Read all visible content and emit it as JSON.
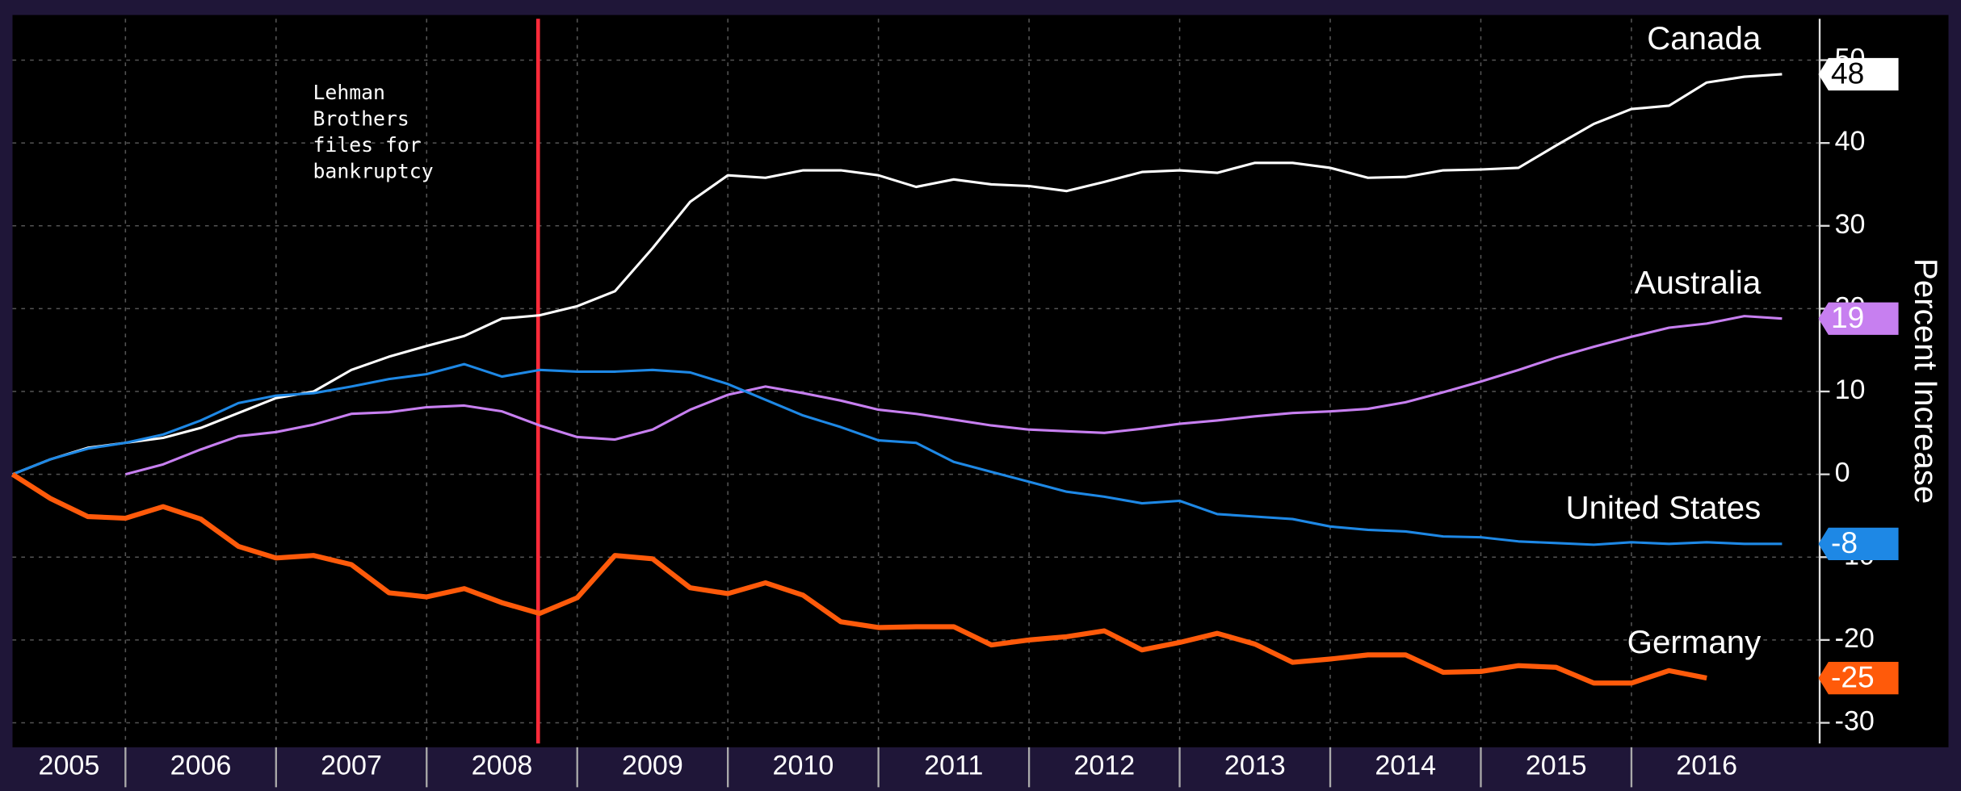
{
  "chart_data": {
    "type": "line",
    "y_axis_label": "Percent Increase",
    "annotation": {
      "x": 2008.74,
      "lines": [
        "Lehman",
        "Brothers",
        "files for",
        "bankruptcy"
      ],
      "color": "#ff2a3a"
    },
    "x": [
      2005.25,
      2005.5,
      2005.75,
      2006,
      2006.25,
      2006.5,
      2006.75,
      2007,
      2007.25,
      2007.5,
      2007.75,
      2008,
      2008.25,
      2008.5,
      2008.75,
      2009,
      2009.25,
      2009.5,
      2009.75,
      2010,
      2010.25,
      2010.5,
      2010.75,
      2011,
      2011.25,
      2011.5,
      2011.75,
      2012,
      2012.25,
      2012.5,
      2012.75,
      2013,
      2013.25,
      2013.5,
      2013.75,
      2014,
      2014.25,
      2014.5,
      2014.75,
      2015,
      2015.25,
      2015.5,
      2015.75,
      2016,
      2016.25,
      2016.5,
      2016.75,
      2017
    ],
    "xlim": [
      2005.25,
      2017.25
    ],
    "xticks": [
      2005,
      2006,
      2007,
      2008,
      2009,
      2010,
      2011,
      2012,
      2013,
      2014,
      2015,
      2016
    ],
    "ylim": [
      -32.5,
      55
    ],
    "yticks": [
      -30,
      -20,
      -10,
      0,
      10,
      20,
      30,
      40,
      50
    ],
    "grid": true,
    "series": [
      {
        "name": "Canada",
        "color": "#ffffff",
        "width": 2,
        "values": [
          0,
          1.8,
          3.2,
          3.8,
          4.4,
          5.6,
          7.4,
          9.2,
          10,
          12.6,
          14.2,
          15.5,
          16.7,
          18.8,
          19.2,
          20.3,
          22.1,
          27.3,
          32.9,
          36.1,
          35.8,
          36.7,
          36.7,
          36.1,
          34.7,
          35.6,
          35,
          34.8,
          34.2,
          35.3,
          36.5,
          36.7,
          36.4,
          37.6,
          37.6,
          37,
          35.8,
          35.9,
          36.7,
          36.8,
          37,
          39.7,
          42.3,
          44.1,
          44.5,
          47.3,
          48,
          48.3
        ],
        "value_labels": [
          null,
          null,
          null,
          null,
          null,
          null,
          null,
          null,
          null,
          null,
          null,
          null,
          null,
          null,
          null,
          null,
          null,
          null,
          null,
          null,
          null,
          null,
          null,
          null,
          null,
          null,
          null,
          null,
          null,
          null,
          null,
          null,
          null,
          null,
          null,
          null,
          null,
          null,
          null,
          null,
          null,
          null,
          null,
          null,
          null,
          null,
          null,
          "48"
        ]
      },
      {
        "name": "Australia",
        "color": "#c77ff0",
        "width": 2,
        "values": [
          null,
          null,
          null,
          0,
          1.2,
          3,
          4.6,
          5.1,
          6,
          7.3,
          7.5,
          8.1,
          8.3,
          7.6,
          5.9,
          4.5,
          4.2,
          5.4,
          7.8,
          9.6,
          10.6,
          9.8,
          8.9,
          7.8,
          7.3,
          6.6,
          5.9,
          5.4,
          5.2,
          5,
          5.5,
          6.1,
          6.5,
          7,
          7.4,
          7.6,
          7.9,
          8.7,
          9.9,
          11.2,
          12.6,
          14.1,
          15.4,
          16.6,
          17.7,
          18.2,
          19.1,
          18.8
        ],
        "value_labels": [
          null,
          null,
          null,
          null,
          null,
          null,
          null,
          null,
          null,
          null,
          null,
          null,
          null,
          null,
          null,
          null,
          null,
          null,
          null,
          null,
          null,
          null,
          null,
          null,
          null,
          null,
          null,
          null,
          null,
          null,
          null,
          null,
          null,
          null,
          null,
          null,
          null,
          null,
          null,
          null,
          null,
          null,
          null,
          null,
          null,
          null,
          null,
          "19"
        ]
      },
      {
        "name": "United States",
        "color": "#1e88e5",
        "width": 2,
        "values": [
          0,
          1.8,
          3.1,
          3.8,
          4.8,
          6.5,
          8.6,
          9.5,
          9.8,
          10.6,
          11.5,
          12.1,
          13.3,
          11.8,
          12.6,
          12.4,
          12.4,
          12.6,
          12.3,
          10.9,
          9,
          7.1,
          5.7,
          4.1,
          3.8,
          1.5,
          0.3,
          -0.9,
          -2.1,
          -2.7,
          -3.5,
          -3.2,
          -4.8,
          -5.1,
          -5.4,
          -6.3,
          -6.7,
          -6.9,
          -7.5,
          -7.6,
          -8.1,
          -8.3,
          -8.5,
          -8.2,
          -8.4,
          -8.2,
          -8.4,
          -8.4
        ],
        "value_labels": [
          null,
          null,
          null,
          null,
          null,
          null,
          null,
          null,
          null,
          null,
          null,
          null,
          null,
          null,
          null,
          null,
          null,
          null,
          null,
          null,
          null,
          null,
          null,
          null,
          null,
          null,
          null,
          null,
          null,
          null,
          null,
          null,
          null,
          null,
          null,
          null,
          null,
          null,
          null,
          null,
          null,
          null,
          null,
          null,
          null,
          null,
          null,
          "-8"
        ]
      },
      {
        "name": "Germany",
        "color": "#ff5a0a",
        "width": 4,
        "values": [
          0,
          -2.9,
          -5.1,
          -5.3,
          -3.9,
          -5.4,
          -8.7,
          -10.1,
          -9.8,
          -10.9,
          -14.3,
          -14.8,
          -13.8,
          -15.5,
          -16.8,
          -14.9,
          -9.8,
          -10.2,
          -13.7,
          -14.4,
          -13.1,
          -14.6,
          -17.8,
          -18.5,
          -18.4,
          -18.4,
          -20.6,
          -20,
          -19.6,
          -18.9,
          -21.2,
          -20.3,
          -19.2,
          -20.5,
          -22.7,
          -22.3,
          -21.8,
          -21.8,
          -23.9,
          -23.8,
          -23.1,
          -23.3,
          -25.2,
          -25.2,
          -23.7,
          -24.6,
          null,
          null
        ],
        "value_labels": [
          null,
          null,
          null,
          null,
          null,
          null,
          null,
          null,
          null,
          null,
          null,
          null,
          null,
          null,
          null,
          null,
          null,
          null,
          null,
          null,
          null,
          null,
          null,
          null,
          null,
          null,
          null,
          null,
          null,
          null,
          null,
          null,
          null,
          null,
          null,
          null,
          null,
          null,
          null,
          null,
          null,
          null,
          null,
          null,
          null,
          "-25",
          null,
          null
        ]
      }
    ]
  }
}
